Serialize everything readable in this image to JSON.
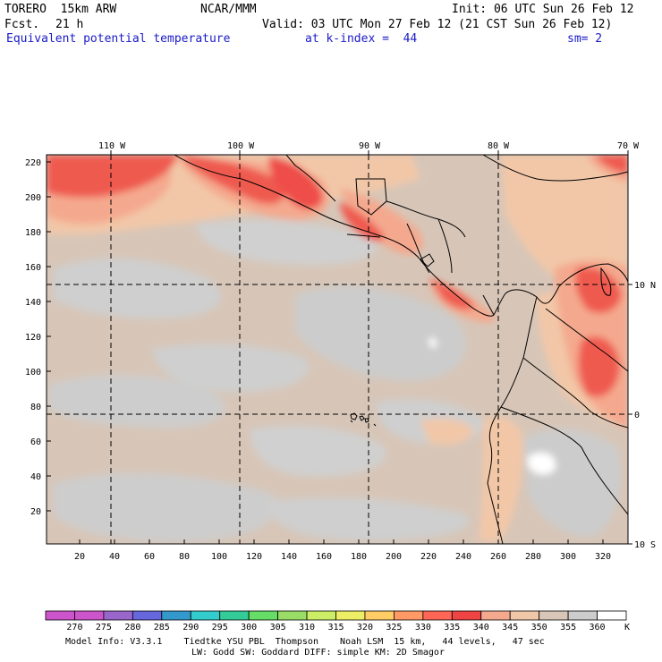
{
  "header": {
    "model": "TORERO  15km ARW",
    "org": "NCAR/MMM",
    "init": "Init: 06 UTC Sun 26 Feb 12",
    "fcst_label": "Fcst.",
    "fcst_value": "21 h",
    "valid": "Valid: 03 UTC Mon 27 Feb 12 (21 CST Sun 26 Feb 12)",
    "field": "Equivalent potential temperature",
    "level": "at k-index =  44",
    "smoothing": "sm= 2"
  },
  "map": {
    "top_lon_labels": [
      "110 W",
      "100 W",
      "90 W",
      "80 W",
      "70 W"
    ],
    "right_lat_labels": [
      "10 N",
      "0",
      "10 S"
    ],
    "y_ticks": [
      "220",
      "200",
      "180",
      "160",
      "140",
      "120",
      "100",
      "80",
      "60",
      "40",
      "20"
    ],
    "x_ticks": [
      "20",
      "40",
      "60",
      "80",
      "100",
      "120",
      "140",
      "160",
      "180",
      "200",
      "220",
      "240",
      "260",
      "280",
      "300",
      "320"
    ]
  },
  "colorbar": {
    "labels": [
      "270",
      "275",
      "280",
      "285",
      "290",
      "295",
      "300",
      "305",
      "310",
      "315",
      "320",
      "325",
      "330",
      "335",
      "340",
      "345",
      "350",
      "355",
      "360"
    ],
    "unit": "K",
    "colors": [
      "#cc55cc",
      "#9966cc",
      "#6666dd",
      "#3399cc",
      "#33cccc",
      "#33cc99",
      "#66dd66",
      "#99dd66",
      "#ccee66",
      "#eeee66",
      "#ffcc66",
      "#ff9966",
      "#ff6655",
      "#ee4444",
      "#f4a98e",
      "#f0c8a8",
      "#d8c7b8",
      "#cccccc",
      "#ffffff"
    ]
  },
  "footer": {
    "line1": "Model Info: V3.3.1    Tiedtke YSU PBL  Thompson    Noah LSM  15 km,   44 levels,   47 sec",
    "line2": "LW: Godd SW: Goddard DIFF: simple KM: 2D Smagor"
  }
}
